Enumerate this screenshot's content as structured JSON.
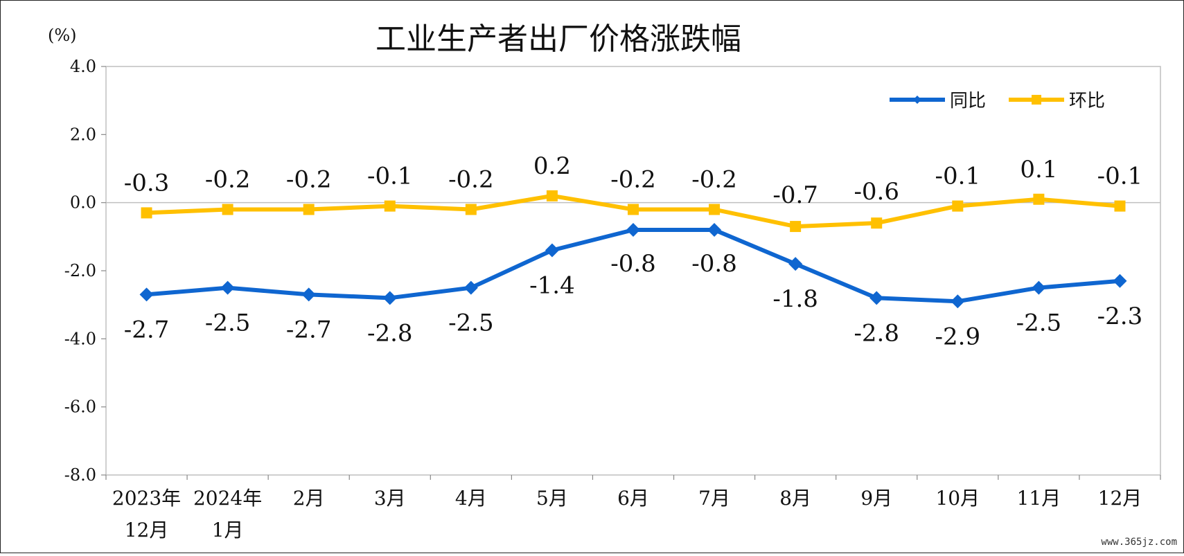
{
  "chart_data": {
    "type": "line",
    "title": "工业生产者出厂价格涨跌幅",
    "unit_label": "(%)",
    "categories": [
      [
        "2023年",
        "12月"
      ],
      [
        "2024年",
        "1月"
      ],
      [
        "2月"
      ],
      [
        "3月"
      ],
      [
        "4月"
      ],
      [
        "5月"
      ],
      [
        "6月"
      ],
      [
        "7月"
      ],
      [
        "8月"
      ],
      [
        "9月"
      ],
      [
        "10月"
      ],
      [
        "11月"
      ],
      [
        "12月"
      ]
    ],
    "ylim": [
      -8.0,
      4.0
    ],
    "yticks": [
      "4.0",
      "2.0",
      "0.0",
      "-2.0",
      "-4.0",
      "-6.0",
      "-8.0"
    ],
    "legend_position": "top-right",
    "series": [
      {
        "name": "同比",
        "color": "#0f66d0",
        "marker": "diamond",
        "values": [
          -2.7,
          -2.5,
          -2.7,
          -2.8,
          -2.5,
          -1.4,
          -0.8,
          -0.8,
          -1.8,
          -2.8,
          -2.9,
          -2.5,
          -2.3
        ],
        "labels": [
          "-2.7",
          "-2.5",
          "-2.7",
          "-2.8",
          "-2.5",
          "-1.4",
          "-0.8",
          "-0.8",
          "-1.8",
          "-2.8",
          "-2.9",
          "-2.5",
          "-2.3"
        ]
      },
      {
        "name": "环比",
        "color": "#ffc000",
        "marker": "square",
        "values": [
          -0.3,
          -0.2,
          -0.2,
          -0.1,
          -0.2,
          0.2,
          -0.2,
          -0.2,
          -0.7,
          -0.6,
          -0.1,
          0.1,
          -0.1
        ],
        "labels": [
          "-0.3",
          "-0.2",
          "-0.2",
          "-0.1",
          "-0.2",
          "0.2",
          "-0.2",
          "-0.2",
          "-0.7",
          "-0.6",
          "-0.1",
          "0.1",
          "-0.1"
        ]
      }
    ]
  },
  "watermark": "www.365jz.com"
}
